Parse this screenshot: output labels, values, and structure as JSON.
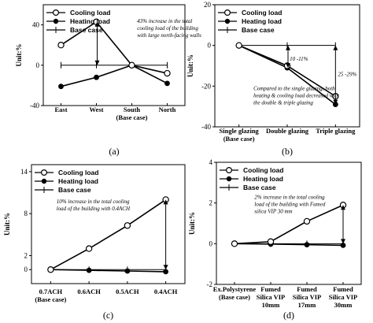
{
  "chart_data": [
    {
      "type": "line",
      "panel_label": "(a)",
      "ylabel": "Unit:%",
      "categories": [
        [
          "East"
        ],
        [
          "West"
        ],
        [
          "South",
          "(Base case)"
        ],
        [
          "North"
        ]
      ],
      "ylim": [
        -40,
        60
      ],
      "yticks": [
        -40,
        0,
        40
      ],
      "legend": {
        "position": "top-left",
        "entries": [
          "Cooling load",
          "Heating load",
          "Base case"
        ]
      },
      "series": [
        {
          "name": "Cooling load",
          "marker": "open-circle",
          "values": [
            20,
            43,
            0,
            -8
          ]
        },
        {
          "name": "Heating load",
          "marker": "filled-circle",
          "values": [
            -21,
            -12,
            0,
            -18
          ]
        },
        {
          "name": "Base case",
          "marker": "plus",
          "values": [
            0,
            0,
            0,
            0
          ]
        }
      ],
      "annotations": [
        {
          "lines": [
            "43% increase in the total",
            "cooling load of the building",
            "with large north-facing walls"
          ],
          "at": [
            2.15,
            42
          ]
        }
      ],
      "arrows": [
        {
          "cat": 1,
          "from": 43,
          "to": 0,
          "double": true
        }
      ]
    },
    {
      "type": "line",
      "panel_label": "(b)",
      "ylabel": "Unit:%",
      "categories": [
        [
          "Single glazing",
          "(Base case)"
        ],
        [
          "Double glazing"
        ],
        [
          "Triple glazing"
        ]
      ],
      "ylim": [
        -40,
        20
      ],
      "yticks": [
        -40,
        -20,
        0,
        20
      ],
      "legend": {
        "position": "top-left",
        "entries": [
          "Cooling load",
          "Heating load",
          "Base case"
        ]
      },
      "series": [
        {
          "name": "Cooling load",
          "marker": "open-circle",
          "values": [
            0,
            -10,
            -25
          ]
        },
        {
          "name": "Heating load",
          "marker": "filled-circle",
          "values": [
            0,
            -11,
            -29
          ]
        },
        {
          "name": "Base case",
          "marker": "plus",
          "values": [
            0,
            0,
            0
          ]
        }
      ],
      "annotations": [
        {
          "lines": [
            "10 -11%"
          ],
          "at": [
            1.05,
            -7.5
          ]
        },
        {
          "lines": [
            "25 -29%"
          ],
          "at": [
            2.05,
            -15
          ]
        },
        {
          "lines": [
            "Compared to the single glazing, both",
            "heating & cooling load decreased with",
            "the double & triple glazing"
          ],
          "at": [
            0.3,
            -22
          ]
        }
      ],
      "arrows": [
        {
          "cat": 1,
          "from": 0,
          "to": -11,
          "double": true
        },
        {
          "cat": 2,
          "from": 0,
          "to": -29,
          "double": true
        }
      ]
    },
    {
      "type": "line",
      "panel_label": "(c)",
      "ylabel": "Unit:%",
      "categories": [
        [
          "0.7ACH",
          "(Base case)"
        ],
        [
          "0.6ACH"
        ],
        [
          "0.5ACH"
        ],
        [
          "0.4ACH"
        ]
      ],
      "ylim": [
        -2,
        15
      ],
      "yticks": [
        0,
        2,
        8,
        14
      ],
      "legend": {
        "position": "top-left",
        "entries": [
          "Cooling load",
          "Heating load",
          "Base case"
        ]
      },
      "series": [
        {
          "name": "Cooling load",
          "marker": "open-circle",
          "values": [
            0,
            3,
            6.3,
            10
          ]
        },
        {
          "name": "Heating load",
          "marker": "filled-circle",
          "values": [
            0,
            -0.1,
            -0.2,
            -0.3
          ]
        },
        {
          "name": "Base case",
          "marker": "plus",
          "values": [
            0,
            0,
            0,
            0
          ]
        }
      ],
      "annotations": [
        {
          "lines": [
            "10% increase in the total cooling",
            "load of the building with 0.4ACH"
          ],
          "at": [
            0.15,
            9.5
          ]
        }
      ],
      "arrows": [
        {
          "cat": 3,
          "from": 10,
          "to": 0,
          "double": true
        }
      ]
    },
    {
      "type": "line",
      "panel_label": "(d)",
      "ylabel": "Unit:%",
      "categories": [
        [
          "Ex.Polystyrene",
          "(Base case)"
        ],
        [
          "Fumed",
          "Silica VIP",
          "10mm"
        ],
        [
          "Fumed",
          "Silica VIP",
          "17mm"
        ],
        [
          "Fumed",
          "Silica VIP",
          "30mm"
        ]
      ],
      "ylim": [
        -2,
        4
      ],
      "yticks": [
        -2,
        0,
        2,
        4
      ],
      "legend": {
        "position": "top-left",
        "entries": [
          "Cooling load",
          "Heating load",
          "Base case"
        ]
      },
      "series": [
        {
          "name": "Cooling load",
          "marker": "open-circle",
          "values": [
            0,
            0.1,
            1.1,
            1.9
          ]
        },
        {
          "name": "Heating load",
          "marker": "filled-circle",
          "values": [
            0,
            -0.02,
            -0.05,
            -0.08
          ]
        },
        {
          "name": "Base case",
          "marker": "plus",
          "values": [
            0,
            0,
            0,
            0
          ]
        }
      ],
      "annotations": [
        {
          "lines": [
            "2% increase in the total cooling",
            "load of the building with Fumed",
            "silica VIP 30 mm"
          ],
          "at": [
            0.55,
            2.2
          ]
        }
      ],
      "arrows": [
        {
          "cat": 3,
          "from": 1.9,
          "to": 0,
          "double": true
        }
      ]
    }
  ]
}
